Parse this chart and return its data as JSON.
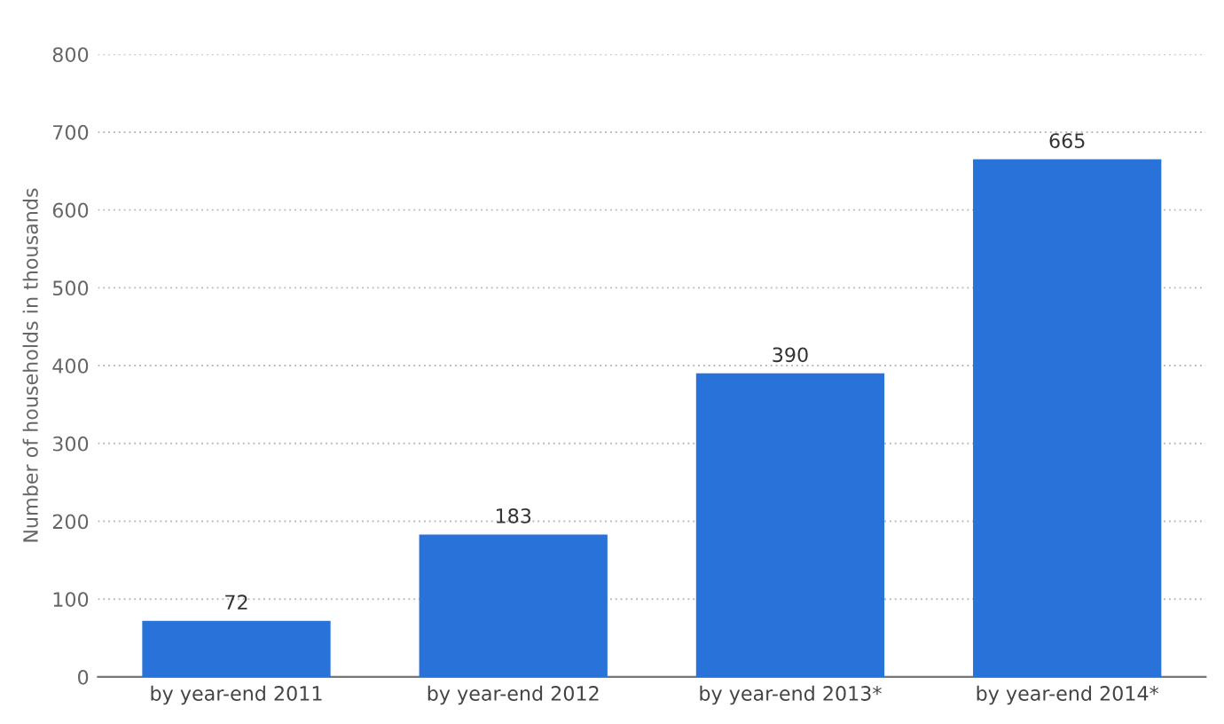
{
  "chart_data": {
    "type": "bar",
    "ylabel": "Number of households in thousands",
    "categories": [
      "by year-end 2011",
      "by year-end 2012",
      "by year-end 2013*",
      "by year-end 2014*"
    ],
    "values": [
      72,
      183,
      390,
      665
    ],
    "color": "#2872d9",
    "ylim": [
      0,
      800
    ],
    "yticks": [
      0,
      100,
      200,
      300,
      400,
      500,
      600,
      700,
      800
    ],
    "grid": "y",
    "data_labels": true
  }
}
